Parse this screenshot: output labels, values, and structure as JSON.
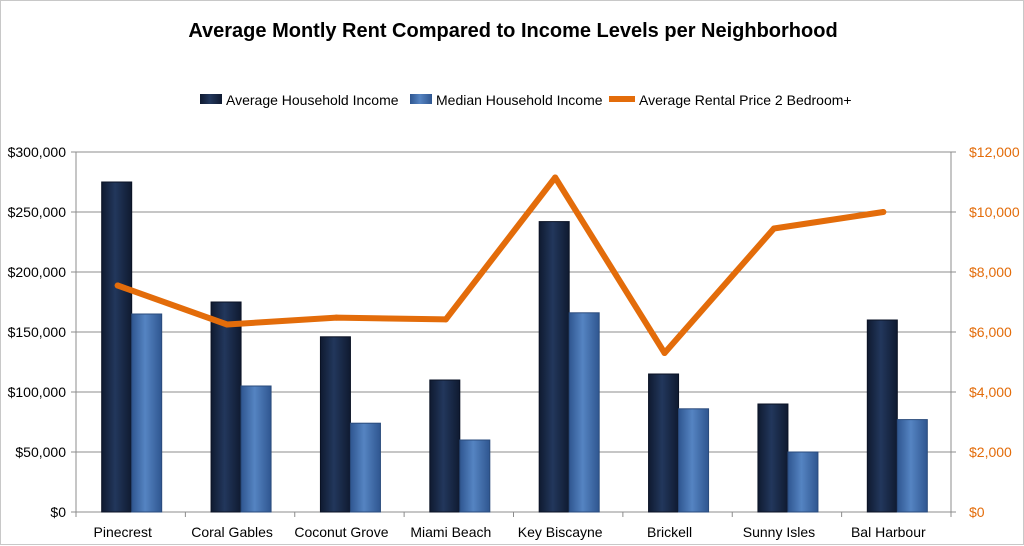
{
  "chart_data": {
    "type": "bar",
    "title": "Average Montly Rent Compared to Income Levels per Neighborhood",
    "categories": [
      "Pinecrest",
      "Coral Gables",
      "Coconut Grove",
      "Miami Beach",
      "Key Biscayne",
      "Brickell",
      "Sunny Isles",
      "Bal Harbour"
    ],
    "series": [
      {
        "name": "Average Household Income",
        "type": "bar",
        "axis": "left",
        "color": "#1a2a48",
        "values": [
          275000,
          175000,
          146000,
          110000,
          242000,
          115000,
          90000,
          160000
        ]
      },
      {
        "name": "Median Household Income",
        "type": "bar",
        "axis": "left",
        "color": "#3f6ca8",
        "values": [
          165000,
          105000,
          74000,
          60000,
          166000,
          86000,
          50000,
          77000
        ]
      },
      {
        "name": "Average Rental Price 2 Bedroom+",
        "type": "line",
        "axis": "right",
        "color": "#e36c0a",
        "values": [
          7550,
          6250,
          6480,
          6420,
          11150,
          5300,
          9450,
          10000
        ]
      }
    ],
    "y_left": {
      "min": 0,
      "max": 300000,
      "step": 50000,
      "tick_labels": [
        "$0",
        "$50,000",
        "$100,000",
        "$150,000",
        "$200,000",
        "$250,000",
        "$300,000"
      ]
    },
    "y_right": {
      "min": 0,
      "max": 12000,
      "step": 2000,
      "tick_labels": [
        "$0",
        "$2,000",
        "$4,000",
        "$6,000",
        "$8,000",
        "$10,000",
        "$12,000"
      ]
    },
    "grid": true,
    "legend_position": "top"
  }
}
